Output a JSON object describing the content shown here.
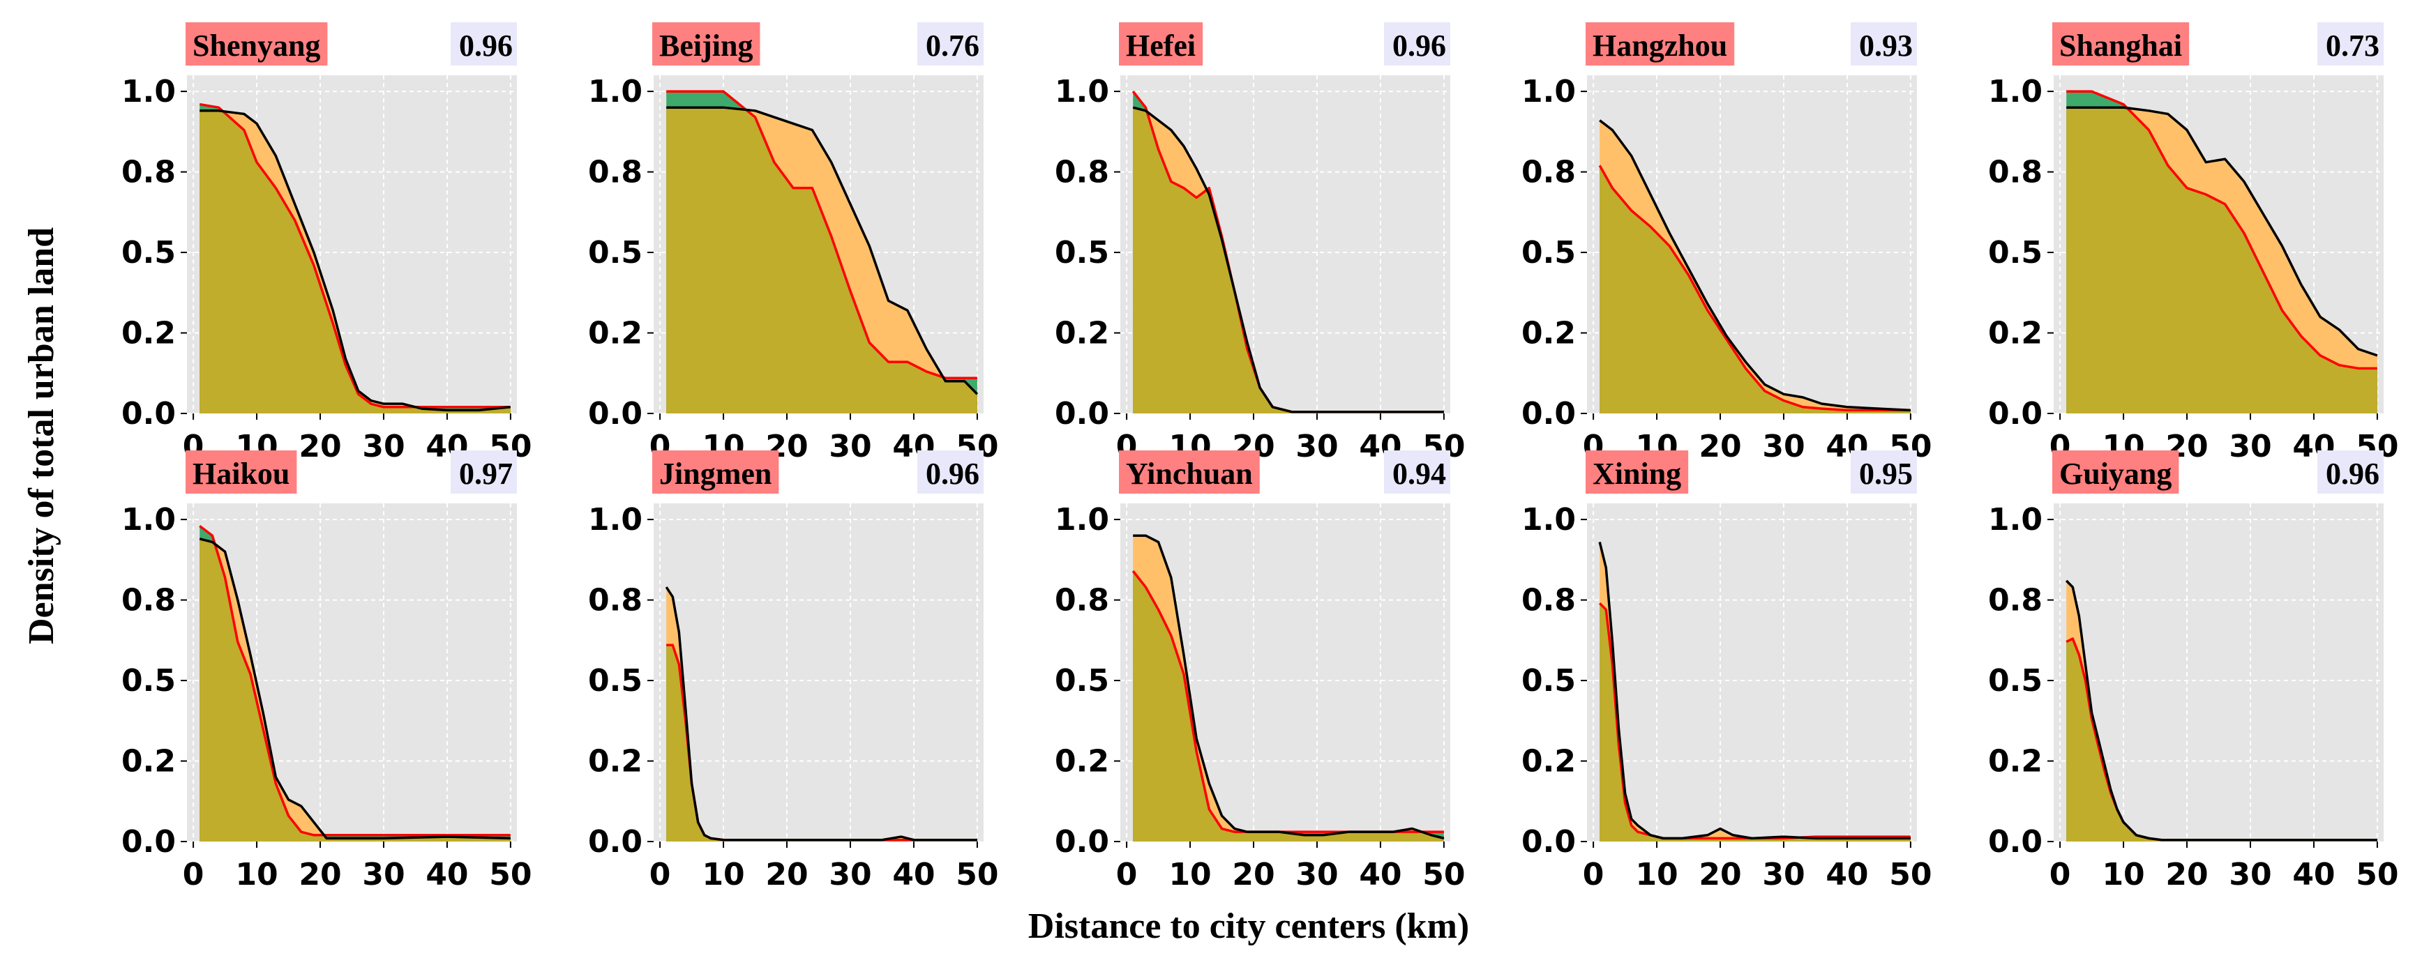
{
  "chart_data": {
    "type": "area",
    "xlabel": "Distance to city centers (km)",
    "ylabel": "Density of total urban land",
    "xlim": [
      0,
      50
    ],
    "ylim": [
      0,
      1.0
    ],
    "xticks": [
      0,
      10,
      20,
      30,
      40,
      50
    ],
    "yticks": [
      "0.0",
      "0.2",
      "0.5",
      "0.8",
      "1.0"
    ],
    "ytick_values": [
      0.0,
      0.25,
      0.5,
      0.75,
      1.0
    ],
    "grid": true,
    "colors": {
      "panel_bg": "#e5e5e5",
      "grid": "#ffffff",
      "overlap": "#bfad2b",
      "series_a_excess": "#ffc069",
      "series_b_excess": "#3faa6b",
      "series_a_line": "#000000",
      "series_b_line": "#ff0000",
      "city_badge": "#ff8080",
      "score_badge": "#e8e8fa"
    },
    "panels": [
      {
        "city": "Shenyang",
        "score": "0.96",
        "x": [
          1,
          4,
          8,
          10,
          13,
          16,
          19,
          22,
          24,
          26,
          28,
          30,
          33,
          36,
          40,
          45,
          50
        ],
        "black": [
          0.94,
          0.94,
          0.93,
          0.9,
          0.8,
          0.65,
          0.5,
          0.32,
          0.17,
          0.07,
          0.04,
          0.03,
          0.03,
          0.015,
          0.01,
          0.01,
          0.02
        ],
        "red": [
          0.96,
          0.95,
          0.88,
          0.78,
          0.7,
          0.6,
          0.46,
          0.28,
          0.15,
          0.06,
          0.03,
          0.02,
          0.02,
          0.02,
          0.02,
          0.02,
          0.02
        ]
      },
      {
        "city": "Beijing",
        "score": "0.76",
        "x": [
          1,
          5,
          10,
          15,
          18,
          21,
          24,
          27,
          30,
          33,
          36,
          39,
          42,
          45,
          48,
          50
        ],
        "black": [
          0.95,
          0.95,
          0.95,
          0.94,
          0.92,
          0.9,
          0.88,
          0.78,
          0.65,
          0.52,
          0.35,
          0.32,
          0.2,
          0.1,
          0.1,
          0.06
        ],
        "red": [
          1.0,
          1.0,
          1.0,
          0.92,
          0.78,
          0.7,
          0.7,
          0.55,
          0.38,
          0.22,
          0.16,
          0.16,
          0.13,
          0.11,
          0.11,
          0.11
        ]
      },
      {
        "city": "Hefei",
        "score": "0.96",
        "x": [
          1,
          3,
          5,
          7,
          9,
          11,
          13,
          15,
          17,
          19,
          21,
          23,
          26,
          30,
          40,
          50
        ],
        "black": [
          0.95,
          0.94,
          0.91,
          0.88,
          0.83,
          0.76,
          0.68,
          0.54,
          0.38,
          0.22,
          0.08,
          0.02,
          0.005,
          0.005,
          0.005,
          0.005
        ],
        "red": [
          1.0,
          0.95,
          0.82,
          0.72,
          0.7,
          0.67,
          0.7,
          0.55,
          0.38,
          0.2,
          0.08,
          0.02,
          0.005,
          0.005,
          0.005,
          0.005
        ]
      },
      {
        "city": "Hangzhou",
        "score": "0.93",
        "x": [
          1,
          3,
          6,
          9,
          12,
          15,
          18,
          21,
          24,
          27,
          30,
          33,
          36,
          40,
          45,
          50
        ],
        "black": [
          0.91,
          0.88,
          0.8,
          0.68,
          0.56,
          0.45,
          0.34,
          0.24,
          0.16,
          0.09,
          0.06,
          0.05,
          0.03,
          0.02,
          0.015,
          0.01
        ],
        "red": [
          0.77,
          0.7,
          0.63,
          0.58,
          0.52,
          0.43,
          0.32,
          0.23,
          0.14,
          0.07,
          0.04,
          0.02,
          0.015,
          0.01,
          0.01,
          0.01
        ]
      },
      {
        "city": "Shanghai",
        "score": "0.73",
        "x": [
          1,
          5,
          10,
          14,
          17,
          20,
          23,
          26,
          29,
          32,
          35,
          38,
          41,
          44,
          47,
          50
        ],
        "black": [
          0.95,
          0.95,
          0.95,
          0.94,
          0.93,
          0.88,
          0.78,
          0.79,
          0.72,
          0.62,
          0.52,
          0.4,
          0.3,
          0.26,
          0.2,
          0.18
        ],
        "red": [
          1.0,
          1.0,
          0.96,
          0.88,
          0.77,
          0.7,
          0.68,
          0.65,
          0.56,
          0.44,
          0.32,
          0.24,
          0.18,
          0.15,
          0.14,
          0.14
        ]
      },
      {
        "city": "Haikou",
        "score": "0.97",
        "x": [
          1,
          3,
          5,
          7,
          9,
          11,
          13,
          15,
          17,
          19,
          21,
          24,
          30,
          40,
          50
        ],
        "black": [
          0.94,
          0.93,
          0.9,
          0.75,
          0.58,
          0.4,
          0.2,
          0.13,
          0.11,
          0.06,
          0.01,
          0.01,
          0.01,
          0.015,
          0.01
        ],
        "red": [
          0.98,
          0.95,
          0.82,
          0.62,
          0.52,
          0.35,
          0.18,
          0.08,
          0.03,
          0.02,
          0.02,
          0.02,
          0.02,
          0.02,
          0.02
        ]
      },
      {
        "city": "Jingmen",
        "score": "0.96",
        "x": [
          1,
          2,
          3,
          4,
          5,
          6,
          7,
          8,
          10,
          20,
          30,
          35,
          38,
          40,
          45,
          50
        ],
        "black": [
          0.79,
          0.76,
          0.65,
          0.42,
          0.18,
          0.06,
          0.02,
          0.01,
          0.005,
          0.005,
          0.005,
          0.005,
          0.015,
          0.005,
          0.005,
          0.005
        ],
        "red": [
          0.61,
          0.61,
          0.55,
          0.38,
          0.18,
          0.06,
          0.02,
          0.01,
          0.005,
          0.005,
          0.005,
          0.005,
          0.005,
          0.005,
          0.005,
          0.005
        ]
      },
      {
        "city": "Yinchuan",
        "score": "0.94",
        "x": [
          1,
          3,
          5,
          7,
          9,
          11,
          13,
          15,
          17,
          19,
          21,
          24,
          28,
          31,
          35,
          38,
          42,
          45,
          48,
          50
        ],
        "black": [
          0.95,
          0.95,
          0.93,
          0.82,
          0.58,
          0.32,
          0.18,
          0.08,
          0.04,
          0.03,
          0.03,
          0.03,
          0.02,
          0.02,
          0.03,
          0.03,
          0.03,
          0.04,
          0.02,
          0.01
        ],
        "red": [
          0.84,
          0.79,
          0.72,
          0.64,
          0.52,
          0.28,
          0.1,
          0.04,
          0.03,
          0.03,
          0.03,
          0.03,
          0.03,
          0.03,
          0.03,
          0.03,
          0.03,
          0.03,
          0.03,
          0.03
        ]
      },
      {
        "city": "Xining",
        "score": "0.95",
        "x": [
          1,
          2,
          3,
          4,
          5,
          6,
          7,
          9,
          11,
          14,
          18,
          20,
          22,
          25,
          30,
          35,
          40,
          45,
          50
        ],
        "black": [
          0.93,
          0.85,
          0.62,
          0.35,
          0.15,
          0.07,
          0.05,
          0.02,
          0.01,
          0.01,
          0.02,
          0.04,
          0.02,
          0.01,
          0.015,
          0.01,
          0.01,
          0.01,
          0.01
        ],
        "red": [
          0.74,
          0.72,
          0.55,
          0.3,
          0.12,
          0.05,
          0.03,
          0.02,
          0.01,
          0.01,
          0.01,
          0.01,
          0.01,
          0.01,
          0.01,
          0.015,
          0.015,
          0.015,
          0.015
        ]
      },
      {
        "city": "Guiyang",
        "score": "0.96",
        "x": [
          1,
          2,
          3,
          4,
          5,
          6,
          7,
          8,
          9,
          10,
          12,
          14,
          16,
          20,
          30,
          40,
          50
        ],
        "black": [
          0.81,
          0.79,
          0.7,
          0.55,
          0.4,
          0.32,
          0.24,
          0.16,
          0.1,
          0.06,
          0.02,
          0.01,
          0.005,
          0.005,
          0.005,
          0.005,
          0.005
        ],
        "red": [
          0.62,
          0.63,
          0.58,
          0.5,
          0.38,
          0.3,
          0.22,
          0.15,
          0.1,
          0.06,
          0.02,
          0.01,
          0.005,
          0.005,
          0.005,
          0.005,
          0.005
        ]
      }
    ]
  }
}
